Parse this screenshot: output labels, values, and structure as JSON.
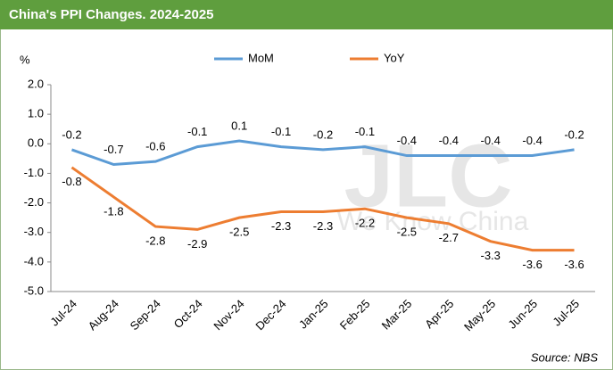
{
  "chart_data": {
    "type": "line",
    "title": "China's PPI Changes. 2024-2025",
    "y_label": "%",
    "source": "Source: NBS",
    "watermark": {
      "logo": "JLC",
      "tagline": "We Know China"
    },
    "categories": [
      "Jul-24",
      "Aug-24",
      "Sep-24",
      "Oct-24",
      "Nov-24",
      "Dec-24",
      "Jan-25",
      "Feb-25",
      "Mar-25",
      "Apr-25",
      "May-25",
      "Jun-25",
      "Jul-25"
    ],
    "series": [
      {
        "name": "MoM",
        "color": "#5b9bd5",
        "values": [
          -0.2,
          -0.7,
          -0.6,
          -0.1,
          0.1,
          -0.1,
          -0.2,
          -0.1,
          -0.4,
          -0.4,
          -0.4,
          -0.4,
          -0.2
        ]
      },
      {
        "name": "YoY",
        "color": "#ed7d31",
        "values": [
          -0.8,
          -1.8,
          -2.8,
          -2.9,
          -2.5,
          -2.3,
          -2.3,
          -2.2,
          -2.5,
          -2.7,
          -3.3,
          -3.6,
          -3.6
        ]
      }
    ],
    "ylim": [
      -5,
      2
    ],
    "yticks": [
      {
        "value": 2,
        "label": "2.0"
      },
      {
        "value": 1,
        "label": "1.0"
      },
      {
        "value": 0,
        "label": "0.0"
      },
      {
        "value": -1,
        "label": "-1.0"
      },
      {
        "value": -2,
        "label": "-2.0"
      },
      {
        "value": -3,
        "label": "-3.0"
      },
      {
        "value": -4,
        "label": "-4.0"
      },
      {
        "value": -5,
        "label": "-5.0"
      }
    ],
    "grid": false,
    "legend": "top"
  }
}
